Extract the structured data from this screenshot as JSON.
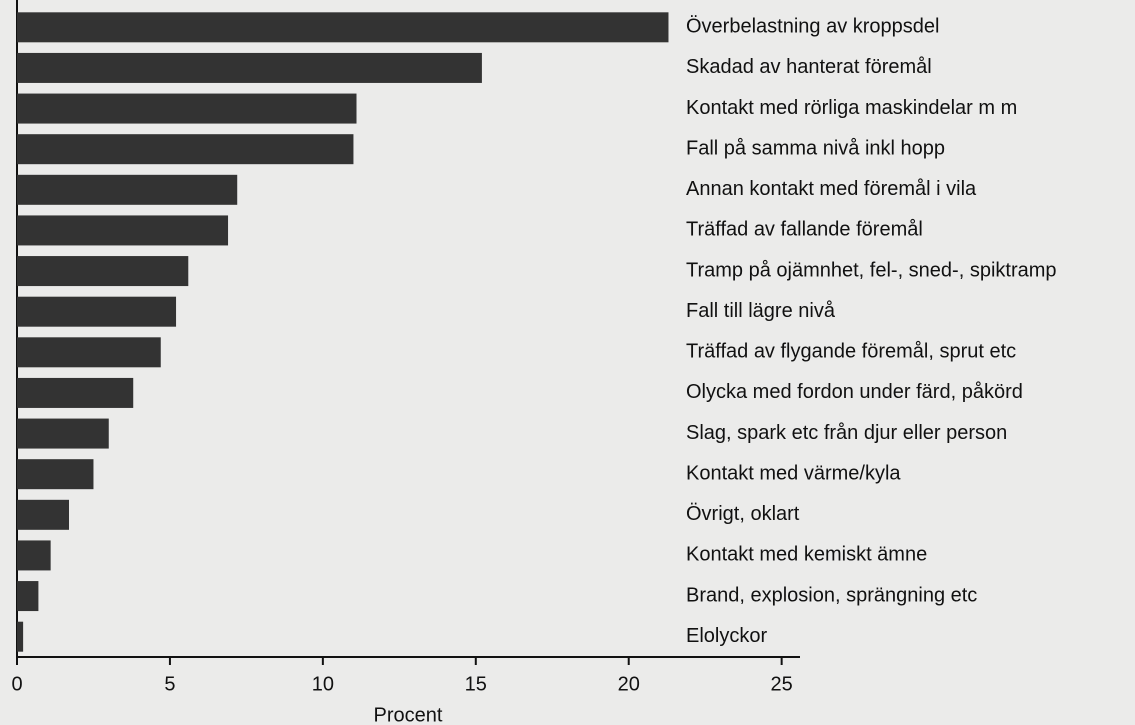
{
  "chart_data": {
    "type": "barh",
    "xlabel": "Procent",
    "categories": [
      "Överbelastning av kroppsdel",
      "Skadad av hanterat föremål",
      "Kontakt med rörliga maskindelar m m",
      "Fall på samma nivå inkl hopp",
      "Annan kontakt med föremål i vila",
      "Träffad av fallande föremål",
      "Tramp på ojämnhet, fel-, sned-, spiktramp",
      "Fall till lägre nivå",
      "Träffad av flygande föremål, sprut etc",
      "Olycka med fordon under färd, påkörd",
      "Slag, spark etc från djur eller person",
      "Kontakt med värme/kyla",
      "Övrigt, oklart",
      "Kontakt med kemiskt ämne",
      "Brand, explosion, sprängning etc",
      "Elolyckor"
    ],
    "values": [
      21.3,
      15.2,
      11.1,
      11.0,
      7.2,
      6.9,
      5.6,
      5.2,
      4.7,
      3.8,
      3.0,
      2.5,
      1.7,
      1.1,
      0.7,
      0.2
    ],
    "color": "#333333",
    "xlim": [
      0,
      25.6
    ],
    "xticks": [
      0,
      5,
      10,
      15,
      20,
      25
    ]
  }
}
